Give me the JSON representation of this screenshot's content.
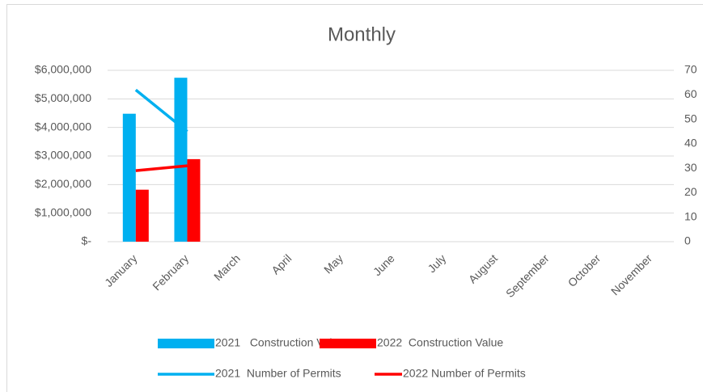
{
  "chart_data": {
    "type": "bar",
    "title": "Monthly",
    "categories": [
      "January",
      "February",
      "March",
      "April",
      "May",
      "June",
      "July",
      "August",
      "September",
      "October",
      "November"
    ],
    "series": [
      {
        "name": "2021   Construction Value",
        "type": "bar",
        "color": "#00b0f0",
        "values": [
          4480000,
          5740000,
          null,
          null,
          null,
          null,
          null,
          null,
          null,
          null,
          null
        ]
      },
      {
        "name": "2022  Construction Value",
        "type": "bar",
        "color": "#ff0000",
        "values": [
          1820000,
          2890000,
          null,
          null,
          null,
          null,
          null,
          null,
          null,
          null,
          null
        ]
      },
      {
        "name": "2021  Number of Permits",
        "type": "line",
        "axis": "y2",
        "color": "#00b0f0",
        "values": [
          62,
          45,
          null,
          null,
          null,
          null,
          null,
          null,
          null,
          null,
          null
        ]
      },
      {
        "name": "2022 Number of Permits",
        "type": "line",
        "axis": "y2",
        "color": "#ff0000",
        "values": [
          29,
          31,
          null,
          null,
          null,
          null,
          null,
          null,
          null,
          null,
          null
        ]
      }
    ],
    "ylim": [
      0,
      6000000
    ],
    "yticks": [
      {
        "value": 0,
        "label": "$-"
      },
      {
        "value": 1000000,
        "label": "$1,000,000"
      },
      {
        "value": 2000000,
        "label": "$2,000,000"
      },
      {
        "value": 3000000,
        "label": "$3,000,000"
      },
      {
        "value": 4000000,
        "label": "$4,000,000"
      },
      {
        "value": 5000000,
        "label": "$5,000,000"
      },
      {
        "value": 6000000,
        "label": "$6,000,000"
      }
    ],
    "y2lim": [
      0,
      70
    ],
    "y2ticks": [
      0,
      10,
      20,
      30,
      40,
      50,
      60,
      70
    ],
    "grid": true,
    "legend": "bottom"
  }
}
